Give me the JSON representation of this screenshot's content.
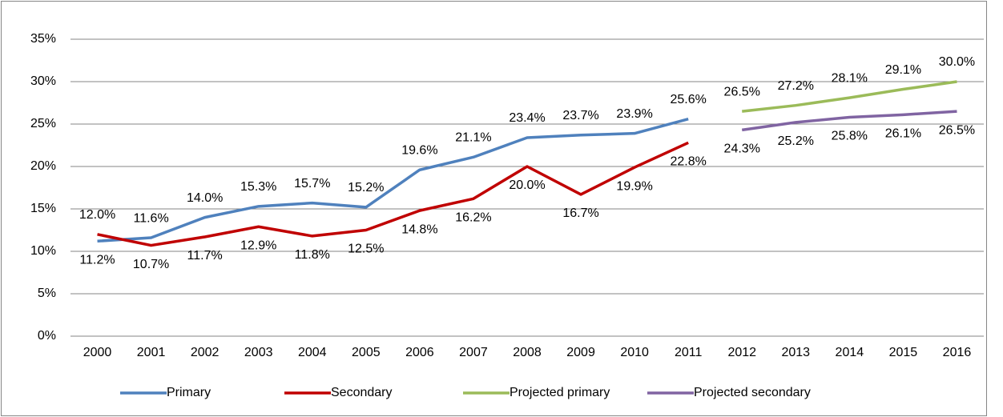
{
  "chart_data": {
    "type": "line",
    "categories": [
      "2000",
      "2001",
      "2002",
      "2003",
      "2004",
      "2005",
      "2006",
      "2007",
      "2008",
      "2009",
      "2010",
      "2011",
      "2012",
      "2013",
      "2014",
      "2015",
      "2016"
    ],
    "series": [
      {
        "name": "Primary",
        "color": "#4f81bd",
        "values": [
          11.2,
          11.6,
          14.0,
          15.3,
          15.7,
          15.2,
          19.6,
          21.1,
          23.4,
          23.7,
          23.9,
          25.6,
          null,
          null,
          null,
          null,
          null
        ],
        "value_labels": [
          "11.2%",
          "11.6%",
          "14.0%",
          "15.3%",
          "15.7%",
          "15.2%",
          "19.6%",
          "21.1%",
          "23.4%",
          "23.7%",
          "23.9%",
          "25.6%",
          null,
          null,
          null,
          null,
          null
        ]
      },
      {
        "name": "Secondary",
        "color": "#c00000",
        "values": [
          12.0,
          10.7,
          11.7,
          12.9,
          11.8,
          12.5,
          14.8,
          16.2,
          20.0,
          16.7,
          19.9,
          22.8,
          null,
          null,
          null,
          null,
          null
        ],
        "value_labels": [
          "12.0%",
          "10.7%",
          "11.7%",
          "12.9%",
          "11.8%",
          "12.5%",
          "14.8%",
          "16.2%",
          "20.0%",
          "16.7%",
          "19.9%",
          "22.8%",
          null,
          null,
          null,
          null,
          null
        ]
      },
      {
        "name": "Projected primary",
        "color": "#9bbb59",
        "values": [
          null,
          null,
          null,
          null,
          null,
          null,
          null,
          null,
          null,
          null,
          null,
          null,
          26.5,
          27.2,
          28.1,
          29.1,
          30.0
        ],
        "value_labels": [
          null,
          null,
          null,
          null,
          null,
          null,
          null,
          null,
          null,
          null,
          null,
          null,
          "26.5%",
          "27.2%",
          "28.1%",
          "29.1%",
          "30.0%"
        ]
      },
      {
        "name": "Projected secondary",
        "color": "#8064a2",
        "values": [
          null,
          null,
          null,
          null,
          null,
          null,
          null,
          null,
          null,
          null,
          null,
          null,
          24.3,
          25.2,
          25.8,
          26.1,
          26.5
        ],
        "value_labels": [
          null,
          null,
          null,
          null,
          null,
          null,
          null,
          null,
          null,
          null,
          null,
          null,
          "24.3%",
          "25.2%",
          "25.8%",
          "26.1%",
          "26.5%"
        ]
      }
    ],
    "ylim": [
      0,
      35
    ],
    "yticks": [
      {
        "value": 0,
        "label": "0%"
      },
      {
        "value": 5,
        "label": "5%"
      },
      {
        "value": 10,
        "label": "10%"
      },
      {
        "value": 15,
        "label": "15%"
      },
      {
        "value": 20,
        "label": "20%"
      },
      {
        "value": 25,
        "label": "25%"
      },
      {
        "value": 30,
        "label": "30%"
      },
      {
        "value": 35,
        "label": "35%"
      }
    ],
    "grid": true,
    "legend": "bottom"
  }
}
